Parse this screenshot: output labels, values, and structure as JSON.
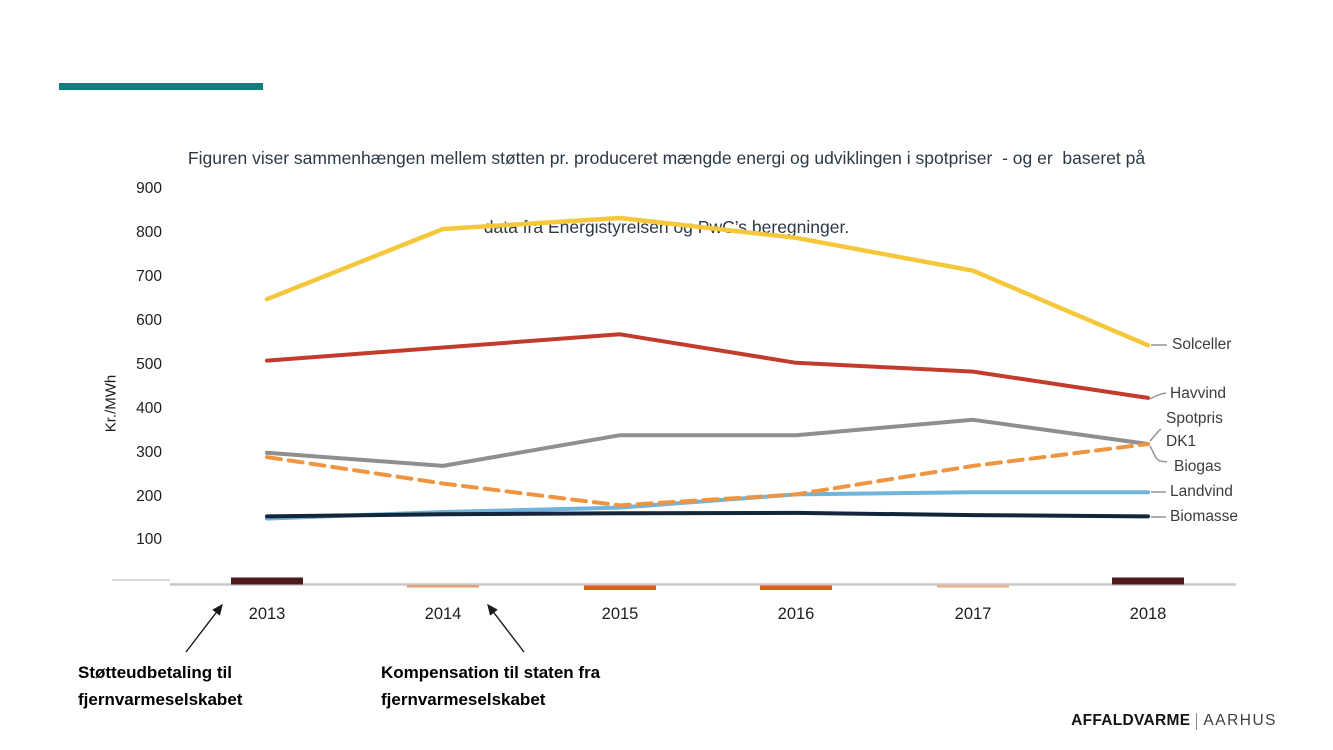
{
  "title": {
    "line1": "Figuren viser sammenhængen mellem støtten pr. produceret mængde energi og udviklingen i spotpriser  - og er  baseret på",
    "line2": "data fra Energistyrelsen og PwC’s beregninger."
  },
  "accent_color": "#0E7D7E",
  "chart_data": {
    "type": "line",
    "x": [
      "2013",
      "2014",
      "2015",
      "2016",
      "2017",
      "2018"
    ],
    "ylabel": "Kr./MWh",
    "yticks": [
      "900",
      "800",
      "700",
      "600",
      "500",
      "400",
      "300",
      "200",
      "100"
    ],
    "ylim": [
      0,
      900
    ],
    "grid": false,
    "legend_position": "right-direct-labels",
    "right_labels": [
      "Solceller",
      "Havvind",
      "Spotpris",
      "DK1",
      "Biogas",
      "Landvind",
      "Biomasse"
    ],
    "series": [
      {
        "name": "Solceller",
        "color": "#F5C83C",
        "style": "solid",
        "values": [
          650,
          810,
          835,
          790,
          715,
          545
        ]
      },
      {
        "name": "Havvind",
        "color": "#C33B2C",
        "style": "solid",
        "values": [
          510,
          540,
          570,
          505,
          485,
          425
        ]
      },
      {
        "name": "Spotpris DK1",
        "color": "#EF9542",
        "style": "dashed",
        "values": [
          290,
          230,
          180,
          205,
          270,
          320
        ]
      },
      {
        "name": "Biogas",
        "color": "#8F8F8F",
        "style": "solid",
        "values": [
          300,
          270,
          340,
          340,
          375,
          320
        ]
      },
      {
        "name": "Landvind",
        "color": "#6FB4DA",
        "style": "solid",
        "values": [
          150,
          165,
          175,
          205,
          210,
          210
        ]
      },
      {
        "name": "Biomasse",
        "color": "#13263A",
        "style": "solid",
        "values": [
          155,
          160,
          162,
          163,
          158,
          155
        ]
      }
    ],
    "axis_bars": [
      {
        "year": "2013",
        "position": "above",
        "emphasis": "strong",
        "color": "#4D1A1A"
      },
      {
        "year": "2014",
        "position": "below",
        "emphasis": "light",
        "color": "#E2A377"
      },
      {
        "year": "2015",
        "position": "below",
        "emphasis": "strong",
        "color": "#D4641C"
      },
      {
        "year": "2016",
        "position": "below",
        "emphasis": "strong",
        "color": "#D4641C"
      },
      {
        "year": "2017",
        "position": "below",
        "emphasis": "light",
        "color": "#E8B28A"
      },
      {
        "year": "2018",
        "position": "above",
        "emphasis": "strong",
        "color": "#4D1A1A"
      }
    ]
  },
  "annotations": {
    "left": {
      "line1": "Støtteudbetaling til",
      "line2": "fjernvarmeselskabet"
    },
    "right": {
      "line1": "Kompensation til staten fra",
      "line2": "fjernvarmeselskabet"
    }
  },
  "footer": {
    "brand_bold": "AFFALDVARME",
    "brand_light": "AARHUS"
  }
}
